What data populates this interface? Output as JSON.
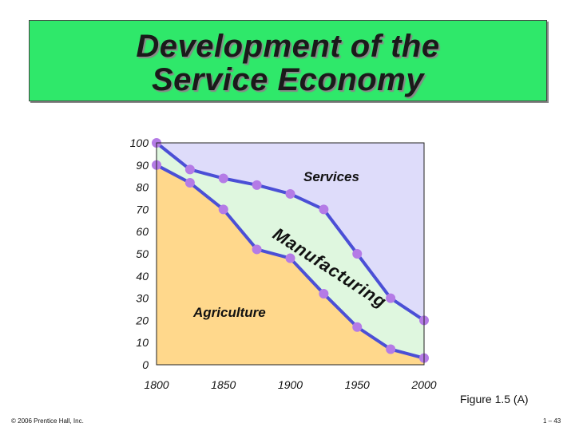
{
  "title": {
    "line1": "Development of the",
    "line2": "Service Economy"
  },
  "figure_caption": "Figure 1.5 (A)",
  "copyright": "© 2006 Prentice Hall, Inc.",
  "page_number": "1 – 43",
  "colors": {
    "title_background": "#2fe86a",
    "services_fill": "#dedcfa",
    "manufacturing_fill": "#dff7df",
    "agriculture_fill": "#ffd88c",
    "line": "#4b4fd6",
    "marker": "#b47be6"
  },
  "chart_data": {
    "type": "area",
    "x_ticks": [
      "1800",
      "1850",
      "1900",
      "1950",
      "2000"
    ],
    "y_ticks": [
      "0",
      "10",
      "20",
      "30",
      "40",
      "50",
      "60",
      "70",
      "80",
      "90",
      "100"
    ],
    "xlim": [
      1800,
      2000
    ],
    "ylim": [
      0,
      100
    ],
    "grid": false,
    "legend": "none",
    "series": [
      {
        "name": "Agriculture",
        "x": [
          1800,
          1825,
          1850,
          1875,
          1900,
          1925,
          1950,
          1975,
          2000
        ],
        "values": [
          90,
          82,
          70,
          52,
          48,
          32,
          17,
          7,
          3
        ]
      },
      {
        "name": "Manufacturing",
        "x": [
          1800,
          1825,
          1850,
          1875,
          1900,
          1925,
          1950,
          1975,
          2000
        ],
        "values": [
          100,
          88,
          84,
          81,
          77,
          70,
          50,
          30,
          20
        ]
      },
      {
        "name": "Services",
        "x": [
          1800,
          2000
        ],
        "values": [
          100,
          100
        ]
      }
    ],
    "labels": {
      "services": "Services",
      "manufacturing": "Manufacturing",
      "agriculture": "Agriculture"
    }
  }
}
